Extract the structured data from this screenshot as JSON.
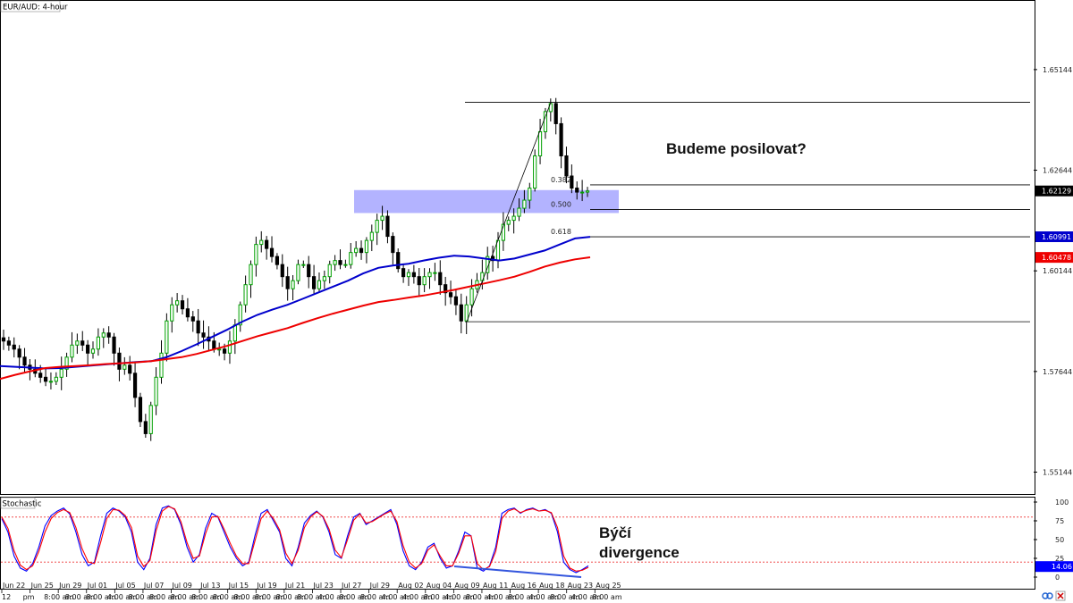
{
  "window": {
    "title": "EUR/AUD: 4-hour",
    "indicator_title": "Stochastic"
  },
  "icons": {
    "link": "link-icon",
    "close": "close-icon"
  },
  "colors": {
    "candle": "#000000",
    "bull_candle": "#00a000",
    "ma_blue": "#0000cc",
    "ma_red": "#ee0000",
    "zone": "#9999ff",
    "stoch_k": "#0000ff",
    "stoch_d": "#ff0000",
    "divergence": "#3355dd",
    "price_tag_current": "#000000",
    "grid_border": "#000000"
  },
  "chart_data": [
    {
      "type": "line",
      "title": "EUR/AUD: 4-hour",
      "ylim": [
        1.546,
        1.6685
      ],
      "y_ticks": [
        "1.65144",
        "1.62644",
        "1.60144",
        "1.57644",
        "1.55144"
      ],
      "y_tick_values": [
        1.65144,
        1.62644,
        1.60144,
        1.57644,
        1.55144
      ],
      "x_ticks": [
        "Jun 22",
        "Jun 25",
        "Jun 29",
        "Jul 01",
        "Jul 05",
        "Jul 07",
        "Jul 09",
        "Jul 13",
        "Jul 15",
        "Jul 19",
        "Jul 21",
        "Jul 23",
        "Jul 27",
        "Jul 29",
        "Aug 02",
        "Aug 04",
        "Aug 09",
        "Aug 11",
        "Aug 16",
        "Aug 18",
        "Aug 23",
        "Aug 25"
      ],
      "x_sub_ticks": [
        "12",
        "pm",
        "8:00 am",
        "8:00 am",
        "8:00 am",
        "4:00 am",
        "8:00 am",
        "8:00 am",
        "8:00 am",
        "8:00 am",
        "8:00 am",
        "8:00 am",
        "8:00 am",
        "8:00 am",
        "8:00 am",
        "4:00 am",
        "8:00 am",
        "8:00 am",
        "4:00 am",
        "4:00 am",
        "8:00 am",
        "4:00 am",
        "8:00 am",
        "4:00 am",
        "8:00 am",
        "4:00 am",
        "8:00 am",
        "4:00 am",
        "8:00 am"
      ],
      "price_tags": [
        {
          "value": 1.62129,
          "label": "1.62129",
          "color": "#000000"
        },
        {
          "value": 1.60991,
          "label": "1.60991",
          "color": "#0000cc"
        },
        {
          "value": 1.60478,
          "label": "1.60478",
          "color": "#ee0000"
        }
      ],
      "series": [
        {
          "kind": "close_path",
          "values": [
            1.584,
            1.583,
            1.582,
            1.58,
            1.578,
            1.577,
            1.576,
            1.575,
            1.574,
            1.574,
            1.575,
            1.577,
            1.58,
            1.583,
            1.584,
            1.583,
            1.581,
            1.582,
            1.585,
            1.586,
            1.585,
            1.581,
            1.577,
            1.578,
            1.576,
            1.57,
            1.564,
            1.561,
            1.568,
            1.575,
            1.581,
            1.589,
            1.593,
            1.594,
            1.592,
            1.59,
            1.589,
            1.586,
            1.585,
            1.584,
            1.582,
            1.582,
            1.581,
            1.584,
            1.588,
            1.593,
            1.598,
            1.603,
            1.608,
            1.609,
            1.607,
            1.605,
            1.603,
            1.6,
            1.597,
            1.599,
            1.603,
            1.603,
            1.6,
            1.597,
            1.599,
            1.6,
            1.603,
            1.604,
            1.603,
            1.603,
            1.606,
            1.607,
            1.606,
            1.609,
            1.611,
            1.614,
            1.615,
            1.61,
            1.606,
            1.602,
            1.6,
            1.601,
            1.6,
            1.598,
            1.6,
            1.601,
            1.601,
            1.598,
            1.596,
            1.595,
            1.593,
            1.589,
            1.593,
            1.597,
            1.599,
            1.601,
            1.605,
            1.604,
            1.609,
            1.613,
            1.614,
            1.615,
            1.617,
            1.619,
            1.622,
            1.63,
            1.636,
            1.641,
            1.643,
            1.638,
            1.63,
            1.625,
            1.622,
            1.621,
            1.621,
            1.62129
          ]
        },
        {
          "name": "",
          "kind": "ma_blue",
          "color": "#0000cc",
          "values": [
            1.5778,
            1.5776,
            1.5774,
            1.5772,
            1.5773,
            1.5776,
            1.5779,
            1.5782,
            1.5785,
            1.5788,
            1.579,
            1.58,
            1.5815,
            1.5832,
            1.585,
            1.5868,
            1.5888,
            1.5905,
            1.5918,
            1.593,
            1.5945,
            1.596,
            1.5975,
            1.599,
            1.6008,
            1.6022,
            1.6028,
            1.6032,
            1.604,
            1.6047,
            1.6052,
            1.605,
            1.6045,
            1.604,
            1.6045,
            1.6055,
            1.6065,
            1.608,
            1.6095,
            1.6099
          ]
        },
        {
          "name": "",
          "kind": "ma_red",
          "color": "#ee0000",
          "values": [
            1.5746,
            1.5756,
            1.5765,
            1.5773,
            1.5776,
            1.5778,
            1.578,
            1.5783,
            1.5785,
            1.5787,
            1.579,
            1.5795,
            1.58,
            1.5808,
            1.5818,
            1.5828,
            1.584,
            1.5852,
            1.5862,
            1.5872,
            1.5885,
            1.5897,
            1.5908,
            1.5918,
            1.5928,
            1.5937,
            1.5942,
            1.5948,
            1.5953,
            1.596,
            1.5967,
            1.5975,
            1.5983,
            1.5991,
            1.6,
            1.6012,
            1.6025,
            1.6035,
            1.6043,
            1.6048
          ]
        }
      ],
      "fib_levels": [
        {
          "label": "0.382",
          "value": 1.6228
        },
        {
          "label": "0.500",
          "value": 1.6167
        },
        {
          "label": "0.618",
          "value": 1.6099
        }
      ],
      "swing_high": 1.6433,
      "swing_low": 1.5888,
      "resistance_zone": {
        "low": 1.6158,
        "high": 1.6215
      },
      "annotation": "Budeme posilovat?"
    },
    {
      "type": "line",
      "title": "Stochastic",
      "ylim": [
        0,
        100
      ],
      "y_ticks": [
        "100",
        "75",
        "50",
        "25",
        "0"
      ],
      "y_tick_values": [
        100,
        75,
        50,
        25,
        0
      ],
      "levels": [
        80,
        20
      ],
      "current_value": "14.06",
      "series": [
        {
          "name": "",
          "kind": "k",
          "color": "#0000ff",
          "values": [
            78,
            60,
            28,
            12,
            8,
            18,
            40,
            68,
            82,
            88,
            92,
            84,
            60,
            30,
            15,
            20,
            55,
            85,
            92,
            88,
            80,
            60,
            20,
            10,
            25,
            70,
            92,
            95,
            90,
            70,
            40,
            20,
            30,
            65,
            85,
            80,
            60,
            40,
            25,
            15,
            20,
            55,
            85,
            90,
            75,
            60,
            25,
            15,
            40,
            72,
            82,
            88,
            80,
            60,
            30,
            25,
            55,
            80,
            85,
            70,
            75,
            80,
            85,
            90,
            70,
            35,
            15,
            10,
            20,
            40,
            45,
            25,
            12,
            15,
            35,
            60,
            55,
            12,
            8,
            15,
            40,
            85,
            90,
            92,
            85,
            90,
            92,
            88,
            90,
            85,
            60,
            20,
            10,
            6,
            10,
            15
          ]
        },
        {
          "name": "",
          "kind": "d",
          "color": "#ff0000",
          "values": [
            80,
            65,
            35,
            16,
            10,
            15,
            34,
            60,
            78,
            86,
            90,
            86,
            66,
            38,
            20,
            18,
            46,
            78,
            90,
            89,
            82,
            66,
            28,
            14,
            22,
            62,
            88,
            94,
            91,
            74,
            46,
            25,
            28,
            58,
            80,
            81,
            64,
            45,
            28,
            18,
            18,
            48,
            78,
            88,
            78,
            63,
            32,
            18,
            36,
            66,
            80,
            87,
            81,
            64,
            36,
            26,
            50,
            76,
            84,
            72,
            74,
            79,
            84,
            88,
            74,
            42,
            20,
            12,
            18,
            36,
            43,
            28,
            15,
            15,
            32,
            55,
            55,
            18,
            10,
            14,
            34,
            78,
            88,
            91,
            86,
            89,
            91,
            88,
            89,
            86,
            66,
            28,
            12,
            8,
            9,
            13
          ]
        }
      ],
      "divergence_note": "Býčí divergence"
    }
  ]
}
